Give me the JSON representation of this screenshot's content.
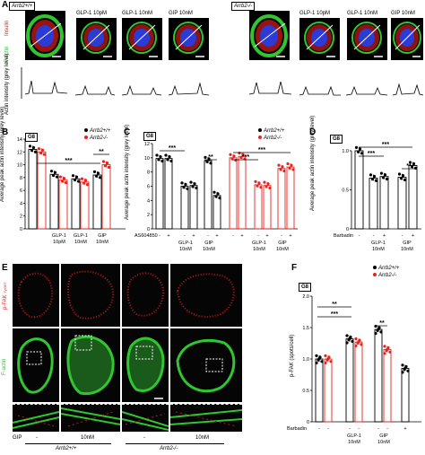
{
  "panelA": {
    "label": "A",
    "genotype_left": "Arrb2+/+",
    "genotype_right": "Arrb2-/-",
    "conditions_left": [
      "GLP-1 10pM",
      "GLP-1 10nM",
      "GIP 10nM"
    ],
    "conditions_right": [
      "GLP-1 10pM",
      "GLP-1 10nM",
      "GIP 10nM"
    ],
    "stain_factin": "F-actin",
    "stain_insulin": "Insulin",
    "yaxis": "Actin intensity (grey level)"
  },
  "chart_data": [
    {
      "panel": "B",
      "type": "bar",
      "tag": "G8",
      "ylabel": "Average peak actin intensity (grey level)",
      "ylim": [
        0,
        14
      ],
      "yticks": [
        "0",
        "2",
        "4",
        "6",
        "8",
        "10",
        "12",
        "14"
      ],
      "legend": [
        "Arrb2+/+",
        "Arrb2-/-"
      ],
      "categories": [
        "",
        "GLP-1 10pM",
        "GLP-1 10nM",
        "GIP 10nM"
      ],
      "series": [
        {
          "name": "Arrb2+/+",
          "values": [
            12.4,
            8.5,
            7.8,
            8.4
          ]
        },
        {
          "name": "Arrb2-/-",
          "values": [
            12.0,
            7.6,
            7.3,
            10.0
          ]
        }
      ],
      "significance": [
        "***",
        "**"
      ]
    },
    {
      "panel": "C",
      "type": "bar",
      "tag": "G8",
      "ylabel": "Average peak actin intensity (grey level)",
      "ylim": [
        0,
        12
      ],
      "yticks": [
        "0",
        "2",
        "4",
        "6",
        "8",
        "10",
        "12"
      ],
      "legend": [
        "Arrb2+/+",
        "Arrb2-/-"
      ],
      "row_label": "AS604850",
      "row_signs": [
        "-",
        "+",
        "-",
        "+",
        "-",
        "+",
        "-",
        "+",
        "-",
        "+",
        "-",
        "+"
      ],
      "groups": [
        "GLP-1 10nM",
        "GIP 10nM"
      ],
      "series": [
        {
          "name": "Arrb2+/+",
          "values": [
            9.9,
            9.9,
            6.0,
            6.1,
            9.6,
            4.7
          ]
        },
        {
          "name": "Arrb2-/-",
          "values": [
            10.0,
            10.2,
            6.2,
            6.1,
            8.5,
            8.7
          ]
        }
      ],
      "significance": [
        "***",
        "**",
        "***",
        "***"
      ]
    },
    {
      "panel": "D",
      "type": "bar",
      "tag": "G8",
      "ylabel": "Average peak actin intensity (grey level)",
      "ylim": [
        0,
        1.0
      ],
      "yticks": [
        "0",
        "0.5",
        "1.0"
      ],
      "row_label": "Barbadin",
      "row_signs": [
        "-",
        "-",
        "+",
        "-",
        "+"
      ],
      "groups": [
        "GLP-1 10nM",
        "GIP 10nM"
      ],
      "values": [
        1.0,
        0.65,
        0.67,
        0.66,
        0.81
      ],
      "significance": [
        "***",
        "***",
        "**"
      ]
    },
    {
      "panel": "F",
      "type": "bar",
      "tag": "G8",
      "ylabel": "p-FAK (spots/cell)",
      "ylim": [
        0,
        2.0
      ],
      "yticks": [
        "0",
        "0.5",
        "1.0",
        "1.5",
        "2.0"
      ],
      "legend": [
        "Arrb2+/+",
        "Arrb2-/-"
      ],
      "row_label": "Barbadin",
      "row_signs": [
        "-",
        "-",
        "-",
        "-",
        "-",
        "-",
        "+"
      ],
      "groups": [
        "GLP-1 10nM",
        "GIP 10nM"
      ],
      "series": [
        {
          "name": "Arrb2+/+",
          "values": [
            1.0,
            1.32,
            1.47,
            0.85
          ]
        },
        {
          "name": "Arrb2-/-",
          "values": [
            1.0,
            1.27,
            1.15
          ]
        }
      ],
      "significance": [
        "**",
        "***",
        "**"
      ]
    }
  ],
  "panelE": {
    "label": "E",
    "stain_pfak": "p-FAK",
    "stain_pfak_sub": "Tyr397",
    "stain_factin": "F-actin",
    "gip_label": "GIP",
    "gip_values": [
      "-",
      "10nM",
      "-",
      "10nM"
    ],
    "genotype_left": "Arrb2+/+",
    "genotype_right": "Arrb2-/-"
  },
  "colors": {
    "wt": "#000000",
    "ko": "#e8231d",
    "actin": "#2fc62f",
    "pfak": "#e02020",
    "nucleus": "#2b3bd6"
  }
}
